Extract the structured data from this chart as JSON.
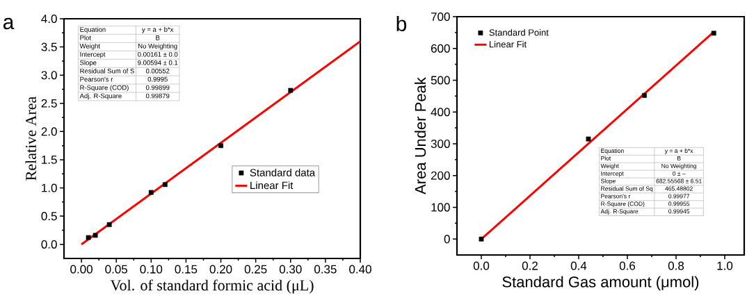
{
  "chart_data": [
    {
      "type": "scatter",
      "xlabel": "Vol. of standard formic acid (μL)",
      "ylabel": "Relative Area",
      "xlim": [
        -0.025,
        0.4
      ],
      "ylim": [
        -0.25,
        4.0
      ],
      "xticks": [
        {
          "value": 0,
          "label": "0.00"
        },
        {
          "value": 0.05,
          "label": "0.05"
        },
        {
          "value": 0.1,
          "label": "0.10"
        },
        {
          "value": 0.15,
          "label": "0.15"
        },
        {
          "value": 0.2,
          "label": "0.20"
        },
        {
          "value": 0.25,
          "label": "0.25"
        },
        {
          "value": 0.3,
          "label": "0.30"
        },
        {
          "value": 0.35,
          "label": "0.35"
        },
        {
          "value": 0.4,
          "label": "0.40"
        }
      ],
      "yticks": [
        {
          "value": 0,
          "label": "0.0"
        },
        {
          "value": 0.5,
          "label": "0.5"
        },
        {
          "value": 1,
          "label": "1.0"
        },
        {
          "value": 1.5,
          "label": "1.5"
        },
        {
          "value": 2,
          "label": "2.0"
        },
        {
          "value": 2.5,
          "label": "2.5"
        },
        {
          "value": 3,
          "label": "3.0"
        },
        {
          "value": 3.5,
          "label": "3.5"
        },
        {
          "value": 4,
          "label": "4.0"
        }
      ],
      "legend": "right",
      "series": [
        {
          "name": "Standard data",
          "marker": "square",
          "color": "#000000",
          "x": [
            0.01,
            0.02,
            0.04,
            0.1,
            0.12,
            0.2,
            0.3
          ],
          "values": [
            0.12,
            0.16,
            0.35,
            0.92,
            1.06,
            1.75,
            2.73
          ]
        },
        {
          "name": "Linear Fit",
          "type": "line",
          "color": "#ff0000",
          "x": [
            0,
            0.4
          ],
          "values": [
            0.0,
            3.6
          ]
        }
      ],
      "annotations": [
        "a",
        "Equation",
        "y = a + b*x",
        "Plot",
        "B",
        "Weight",
        "No Weighting",
        "Intercept",
        "0.00161 ± 0.0",
        "Slope",
        "9.00594 ± 0.1",
        "Residual Sum of S",
        "0.00552",
        "Pearson's r",
        "0.9995",
        "R-Square (COD)",
        "0.99899",
        "Adj. R-Square",
        "0.99879"
      ]
    },
    {
      "type": "scatter",
      "xlabel": "Standard Gas amount (μmol)",
      "ylabel": "Area Under Peak",
      "xlim": [
        -0.1,
        1.08
      ],
      "ylim": [
        -50,
        700
      ],
      "xticks": [
        {
          "value": 0,
          "label": "0.0"
        },
        {
          "value": 0.2,
          "label": "0.2"
        },
        {
          "value": 0.4,
          "label": "0.4"
        },
        {
          "value": 0.6,
          "label": "0.6"
        },
        {
          "value": 0.8,
          "label": "0.8"
        },
        {
          "value": 1,
          "label": "1.0"
        }
      ],
      "yticks": [
        0,
        100,
        200,
        300,
        400,
        500,
        600,
        700
      ],
      "legend": "top left",
      "series": [
        {
          "name": "Standard Point",
          "marker": "square",
          "color": "#000000",
          "x": [
            0,
            0.44,
            0.67,
            0.955
          ],
          "values": [
            0,
            315,
            452,
            648
          ]
        },
        {
          "name": "Linear Fit",
          "type": "line",
          "color": "#ff0000",
          "x": [
            0,
            0.955
          ],
          "values": [
            0,
            652
          ]
        }
      ],
      "annotations": [
        "b",
        "Equation",
        "y = a + b*x",
        "Plot",
        "B",
        "Weight",
        "No Weighting",
        "Intercept",
        "0 ± –",
        "Slope",
        "682.55568 ± 6.51",
        "Residual Sum of Sq",
        "465.48802",
        "Pearson's r",
        "0.99977",
        "R-Square (COD)",
        "0.99955",
        "Adj. R-Square",
        "0.99945"
      ]
    }
  ]
}
